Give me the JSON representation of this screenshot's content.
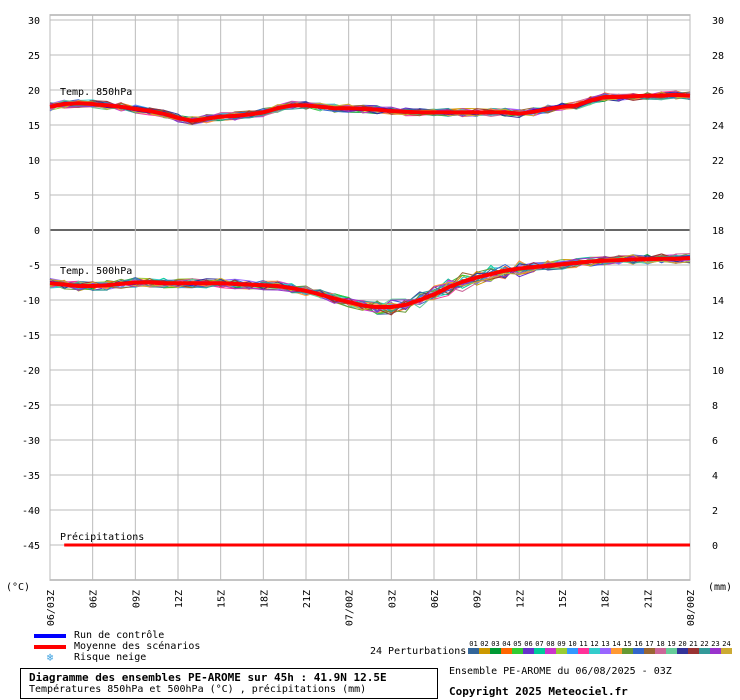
{
  "chart_data": {
    "type": "line",
    "x_ticks": [
      "06/03Z",
      "06Z",
      "09Z",
      "12Z",
      "15Z",
      "18Z",
      "21Z",
      "07/00Z",
      "03Z",
      "06Z",
      "09Z",
      "12Z",
      "15Z",
      "18Z",
      "21Z",
      "08/00Z"
    ],
    "y_left_ticks": [
      30,
      25,
      20,
      15,
      10,
      5,
      0,
      -5,
      -10,
      -15,
      -20,
      -25,
      -30,
      -35,
      -40,
      -45
    ],
    "y_right_ticks": [
      30,
      28,
      26,
      24,
      22,
      20,
      18,
      16,
      14,
      12,
      10,
      8,
      6,
      4,
      2,
      0
    ],
    "ylim_left": [
      -50,
      32
    ],
    "y_left_unit": "(°C)",
    "y_right_unit": "(mm)",
    "x_hours": [
      0,
      3,
      6,
      9,
      12,
      15,
      18,
      21,
      24,
      27,
      30,
      33,
      36,
      39,
      42,
      45
    ],
    "annotations": {
      "t850": "Temp. 850hPa",
      "t500": "Temp. 500hPa",
      "precip": "Précipitations"
    },
    "series": [
      {
        "name": "Moyenne des scénarios",
        "var": "t850",
        "x": [
          0,
          1,
          2,
          3,
          4,
          5,
          6,
          7,
          8,
          9,
          10,
          11,
          12,
          13,
          14,
          15,
          16,
          17,
          18,
          19,
          20,
          21,
          22,
          23,
          24,
          25,
          26,
          27,
          28,
          29,
          30,
          31,
          32,
          33,
          34,
          35,
          36,
          37,
          38,
          39,
          40,
          41,
          42,
          43,
          44,
          45
        ],
        "values": [
          17.6,
          18,
          18.1,
          18,
          17.8,
          17.6,
          17.3,
          17,
          16.6,
          16,
          15.6,
          15.9,
          16.2,
          16.3,
          16.5,
          16.8,
          17.4,
          17.8,
          17.8,
          17.6,
          17.4,
          17.4,
          17.3,
          17.2,
          17,
          16.9,
          16.8,
          16.8,
          16.8,
          16.8,
          16.8,
          16.8,
          16.8,
          16.6,
          16.9,
          17.3,
          17.6,
          17.8,
          18.5,
          19,
          19,
          19.1,
          19.2,
          19.2,
          19.3,
          19.2
        ]
      },
      {
        "name": "Moyenne des scénarios",
        "var": "t500",
        "x": [
          0,
          1,
          2,
          3,
          4,
          5,
          6,
          7,
          8,
          9,
          10,
          11,
          12,
          13,
          14,
          15,
          16,
          17,
          18,
          19,
          20,
          21,
          22,
          23,
          24,
          25,
          26,
          27,
          28,
          29,
          30,
          31,
          32,
          33,
          34,
          35,
          36,
          37,
          38,
          39,
          40,
          41,
          42,
          43,
          44,
          45
        ],
        "values": [
          -7.6,
          -7.8,
          -8,
          -8,
          -7.9,
          -7.7,
          -7.5,
          -7.5,
          -7.6,
          -7.6,
          -7.6,
          -7.6,
          -7.6,
          -7.7,
          -7.8,
          -7.9,
          -8,
          -8.3,
          -8.7,
          -9.2,
          -9.8,
          -10.3,
          -10.8,
          -11,
          -11,
          -10.7,
          -10,
          -9.2,
          -8.2,
          -7.4,
          -6.8,
          -6.3,
          -5.8,
          -5.5,
          -5.3,
          -5.1,
          -4.9,
          -4.7,
          -4.5,
          -4.4,
          -4.3,
          -4.2,
          -4.2,
          -4.1,
          -4.1,
          -4
        ]
      },
      {
        "name": "Précipitations",
        "var": "precip",
        "x": [
          1,
          45
        ],
        "values": [
          0,
          0
        ]
      }
    ]
  },
  "legend": {
    "control": "Run de contrôle",
    "mean": "Moyenne des scénarios",
    "snow": "Risque neige",
    "control_color": "#0000ff",
    "mean_color": "#ff0000",
    "snow_icon": "snowflake-icon"
  },
  "perturbations": {
    "label": "24 Perturbations",
    "numbers": [
      "01",
      "02",
      "03",
      "04",
      "05",
      "06",
      "07",
      "08",
      "09",
      "10",
      "11",
      "12",
      "13",
      "14",
      "15",
      "16",
      "17",
      "18",
      "19",
      "20",
      "21",
      "22",
      "23",
      "24"
    ],
    "colors": [
      "#336699",
      "#cc9900",
      "#009933",
      "#ff6600",
      "#33cc33",
      "#6633cc",
      "#00cc99",
      "#cc33cc",
      "#99cc33",
      "#3399ff",
      "#ff3399",
      "#33cccc",
      "#9966ff",
      "#ff9933",
      "#669933",
      "#3366cc",
      "#996633",
      "#cc6699",
      "#66cc99",
      "#333399",
      "#993333",
      "#339999",
      "#9933cc",
      "#ccaa33"
    ]
  },
  "info": {
    "title": "Diagramme des ensembles PE-AROME sur 45h : 41.9N 12.5E",
    "subtitle": "Températures 850hPa et 500hPa (°C) , précipitations (mm)",
    "ensemble": "Ensemble PE-AROME du 06/08/2025 - 03Z",
    "copyright": "Copyright 2025 Meteociel.fr"
  }
}
